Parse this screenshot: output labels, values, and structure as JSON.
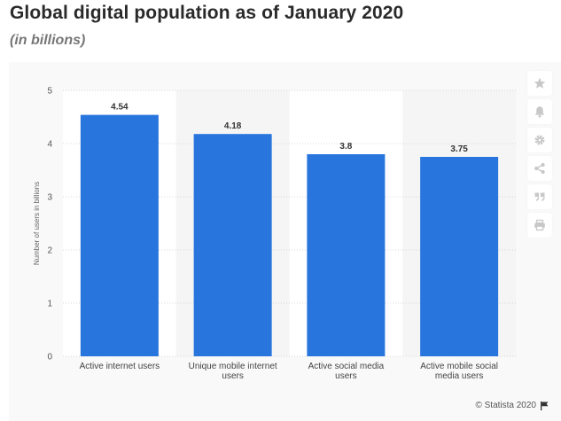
{
  "header": {
    "title": "Global digital population as of January 2020",
    "subtitle": "(in billions)"
  },
  "toolbar": {
    "items": [
      {
        "icon": "star-icon",
        "label": "Favorite"
      },
      {
        "icon": "bell-icon",
        "label": "Notification"
      },
      {
        "icon": "gear-icon",
        "label": "Settings"
      },
      {
        "icon": "share-icon",
        "label": "Share"
      },
      {
        "icon": "quote-icon",
        "label": "Cite"
      },
      {
        "icon": "print-icon",
        "label": "Print"
      }
    ]
  },
  "footer": {
    "source": "© Statista 2020",
    "flag_icon": "flag-icon"
  },
  "colors": {
    "bar": "#2876dd",
    "panel": "#f9f9f9",
    "plot": "#ffffff",
    "band": "#f5f5f5",
    "grid": "#d8d8d8",
    "icon": "#c8c8c8"
  },
  "chart_data": {
    "type": "bar",
    "title": "Global digital population as of January 2020",
    "subtitle": "(in billions)",
    "categories": [
      "Active internet users",
      "Unique mobile internet users",
      "Active social media users",
      "Active mobile social media users"
    ],
    "values": [
      4.54,
      4.18,
      3.8,
      3.75
    ],
    "value_labels": [
      "4.54",
      "4.18",
      "3.8",
      "3.75"
    ],
    "xlabel": "",
    "ylabel": "Number of users in billions",
    "ylim": [
      0,
      5
    ],
    "yticks": [
      0,
      1,
      2,
      3,
      4,
      5
    ],
    "grid": true,
    "legend": "none"
  }
}
